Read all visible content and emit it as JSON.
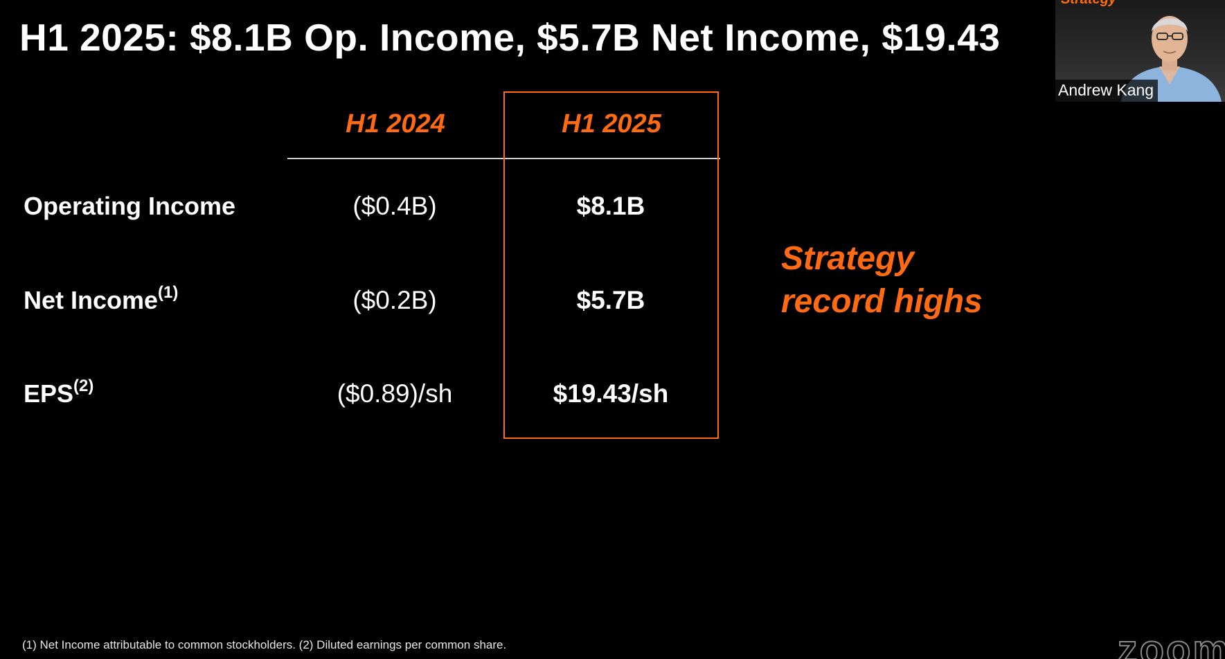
{
  "slide": {
    "title": "H1 2025: $8.1B Op. Income, $5.7B Net Income, $19.43",
    "columns": [
      "H1 2024",
      "H1 2025"
    ],
    "rows": [
      {
        "label": "Operating Income",
        "footnote": "",
        "h1_2024": "($0.4B)",
        "h1_2025": "$8.1B"
      },
      {
        "label": "Net Income",
        "footnote": "(1)",
        "h1_2024": "($0.2B)",
        "h1_2025": "$5.7B"
      },
      {
        "label": "EPS",
        "footnote": "(2)",
        "h1_2024": "($0.89)/sh",
        "h1_2025": "$19.43/sh"
      }
    ],
    "callout": {
      "line1": "Strategy",
      "line2": "record highs"
    },
    "footnote": "(1) Net Income attributable to common stockholders. (2) Diluted earnings per common share."
  },
  "video": {
    "participant_name": "Andrew Kang",
    "brand_text": "Strategy"
  },
  "app": {
    "watermark": "zoom"
  },
  "colors": {
    "background": "#000000",
    "accent": "#ff6a13",
    "text": "#ffffff"
  }
}
